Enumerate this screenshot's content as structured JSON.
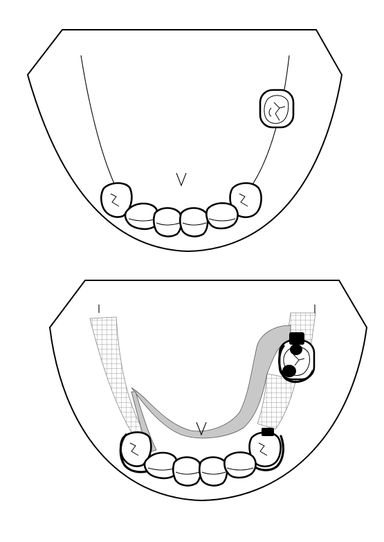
{
  "figure": {
    "panels": [
      {
        "id": "upper",
        "description_visible_text": ""
      },
      {
        "id": "lower",
        "description_visible_text": ""
      }
    ],
    "colors": {
      "outline": "#000000",
      "background": "#ffffff",
      "major_connector": "#c8c8c8",
      "mesh": "#808080"
    },
    "icons": [
      "mandibular-arch",
      "incisor-tooth",
      "canine-tooth",
      "molar-tooth",
      "lingual-bar-connector",
      "retention-mesh",
      "clasp",
      "occlusal-rest"
    ]
  }
}
